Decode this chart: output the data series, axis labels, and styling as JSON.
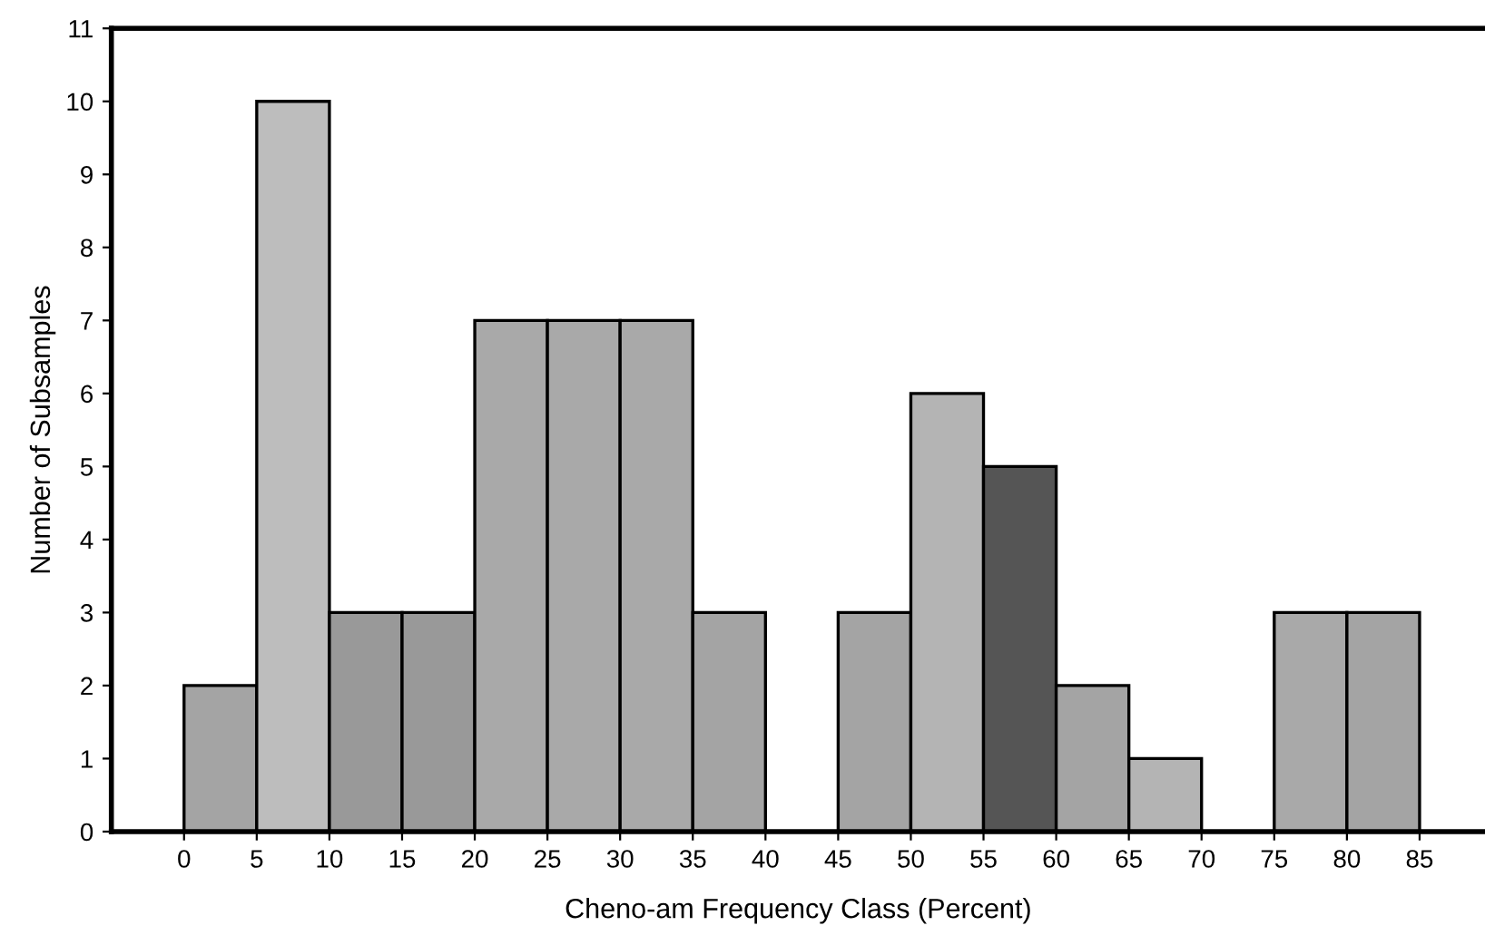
{
  "chart_data": {
    "type": "histogram",
    "xlabel": "Cheno-am Frequency Class (Percent)",
    "ylabel": "Number of Subsamples",
    "bins": [
      0,
      5,
      10,
      15,
      20,
      25,
      30,
      35,
      40,
      45,
      50,
      55,
      60,
      65,
      70,
      75,
      80,
      85
    ],
    "values": [
      2,
      10,
      3,
      3,
      7,
      7,
      7,
      3,
      0,
      3,
      6,
      5,
      2,
      1,
      0,
      3,
      3
    ],
    "colors": [
      "#a4a4a4",
      "#bdbdbd",
      "#999999",
      "#999999",
      "#a9a9a9",
      "#a9a9a9",
      "#a9a9a9",
      "#a4a4a4",
      "#a4a4a4",
      "#a4a4a4",
      "#b4b4b4",
      "#555555",
      "#a4a4a4",
      "#b4b4b4",
      "#a4a4a4",
      "#a9a9a9",
      "#a4a4a4"
    ],
    "xlim": [
      -5,
      89.5
    ],
    "ylim": [
      0,
      11
    ],
    "xticks": [
      0,
      5,
      10,
      15,
      20,
      25,
      30,
      35,
      40,
      45,
      50,
      55,
      60,
      65,
      70,
      75,
      80,
      85
    ],
    "yticks": [
      0,
      1,
      2,
      3,
      4,
      5,
      6,
      7,
      8,
      9,
      10,
      11
    ],
    "grid": false,
    "legend": false
  }
}
